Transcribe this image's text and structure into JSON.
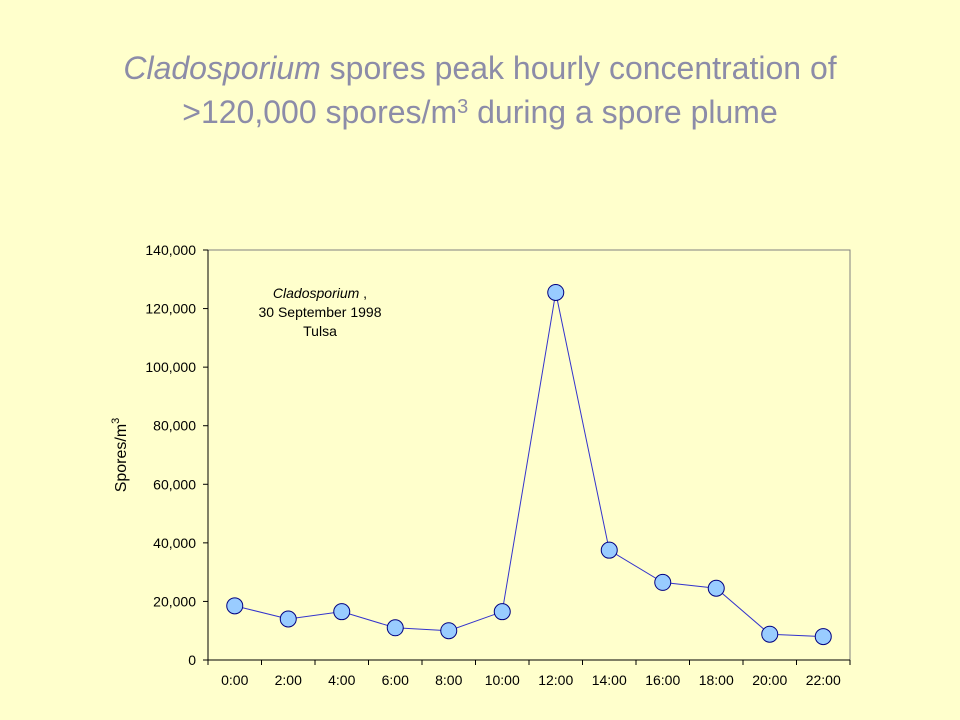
{
  "title": {
    "line1_italic": "Cladosporium",
    "line1_rest": " spores peak hourly concentration of",
    "line2_pre": ">120,000 spores/m",
    "line2_sup": "3",
    "line2_post": " during a spore plume"
  },
  "colors": {
    "background": "#ffffcc",
    "title": "#8c8ca8",
    "line": "#3333cc",
    "marker_fill": "#99ccff",
    "marker_stroke": "#000080",
    "axis": "#000000"
  },
  "chart_data": {
    "type": "line",
    "categories": [
      "0:00",
      "2:00",
      "4:00",
      "6:00",
      "8:00",
      "10:00",
      "12:00",
      "14:00",
      "16:00",
      "18:00",
      "20:00",
      "22:00"
    ],
    "series": [
      {
        "values": [
          18500,
          14000,
          16500,
          11000,
          10000,
          16500,
          125500,
          37500,
          26500,
          24500,
          8800,
          8000
        ]
      }
    ],
    "ylim": [
      0,
      140000
    ],
    "yticks": [
      0,
      20000,
      40000,
      60000,
      80000,
      100000,
      120000,
      140000
    ],
    "ytick_labels": [
      "0",
      "20,000",
      "40,000",
      "60,000",
      "80,000",
      "100,000",
      "120,000",
      "140,000"
    ],
    "ylabel": "Spores/m",
    "ylabel_sup": "3",
    "xlabel": "",
    "grid": false,
    "annotation": {
      "line1_italic": "Cladosporium",
      "line1_rest": " ,",
      "line2": "30 September 1998",
      "line3": "Tulsa"
    }
  }
}
